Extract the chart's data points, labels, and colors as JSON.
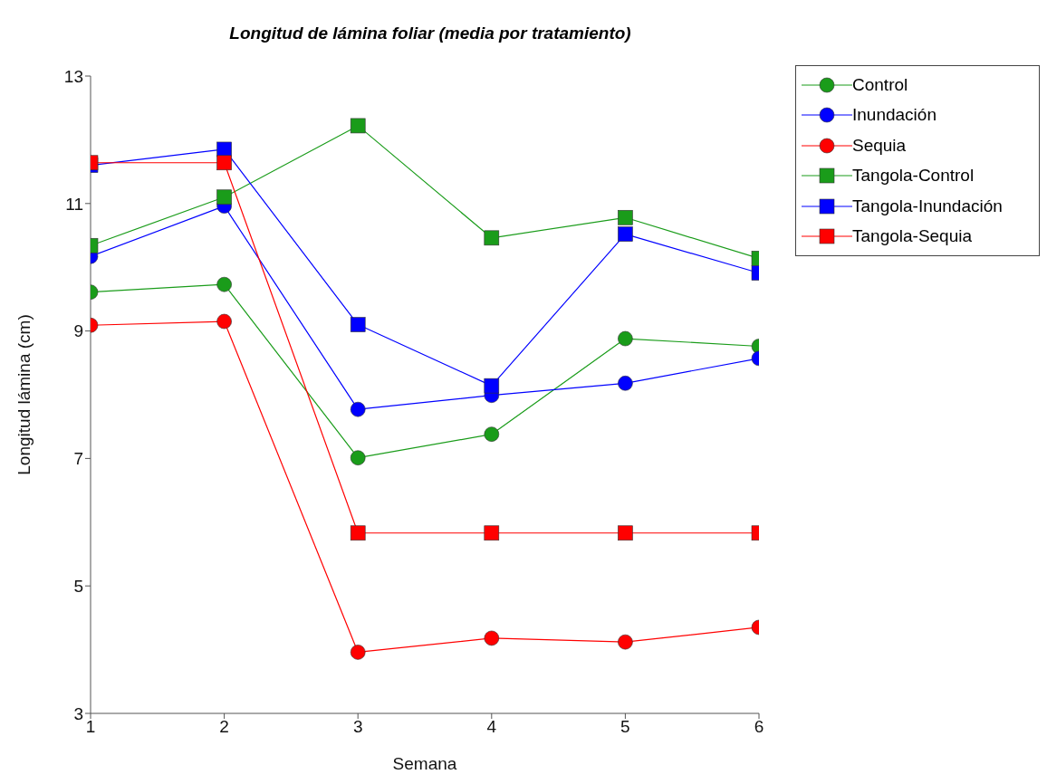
{
  "chart_data": {
    "type": "line",
    "title": "Longitud de lámina foliar (media por tratamiento)",
    "xlabel": "Semana",
    "ylabel": "Longitud lámina (cm)",
    "x": [
      1,
      2,
      3,
      4,
      5,
      6
    ],
    "xlim": [
      1,
      6
    ],
    "xticks": [
      1,
      2,
      3,
      4,
      5,
      6
    ],
    "ylim": [
      3,
      13
    ],
    "yticks": [
      3,
      5,
      7,
      9,
      11,
      13
    ],
    "grid": false,
    "legend": "top right",
    "line_style": "solid",
    "series": [
      {
        "name": "Control",
        "color": "#1a9c1a",
        "marker": "circle",
        "values": [
          9.61,
          9.73,
          7.01,
          7.38,
          8.88,
          8.76
        ]
      },
      {
        "name": "Inundación",
        "color": "#0000ff",
        "marker": "circle",
        "values": [
          10.17,
          10.96,
          7.77,
          7.99,
          8.18,
          8.57
        ]
      },
      {
        "name": "Sequia",
        "color": "#ff0000",
        "marker": "circle",
        "values": [
          9.09,
          9.15,
          3.96,
          4.18,
          4.12,
          4.35
        ]
      },
      {
        "name": "Tangola-Control",
        "color": "#1a9c1a",
        "marker": "square",
        "values": [
          10.34,
          11.1,
          12.22,
          10.46,
          10.78,
          10.14
        ]
      },
      {
        "name": "Tangola-Inundación",
        "color": "#0000ff",
        "marker": "square",
        "values": [
          11.6,
          11.85,
          9.1,
          8.14,
          10.52,
          9.91
        ]
      },
      {
        "name": "Tangola-Sequia",
        "color": "#ff0000",
        "marker": "square",
        "values": [
          11.64,
          11.64,
          5.83,
          5.83,
          5.83,
          5.83
        ]
      }
    ]
  }
}
